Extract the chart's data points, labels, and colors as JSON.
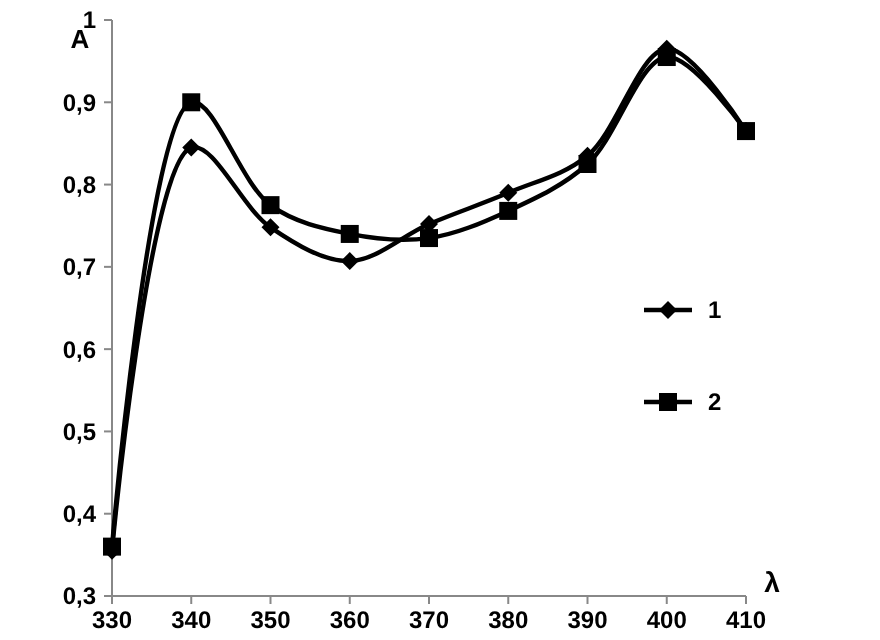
{
  "chart_data": {
    "type": "line",
    "xlabel": "λ",
    "ylabel": "A",
    "x": [
      330,
      340,
      350,
      360,
      370,
      380,
      390,
      400,
      410
    ],
    "series": [
      {
        "name": "1",
        "color": "#000000",
        "marker": "diamond",
        "values": [
          0.355,
          0.845,
          0.748,
          0.707,
          0.752,
          0.79,
          0.835,
          0.965,
          0.865
        ]
      },
      {
        "name": "2",
        "color": "#000000",
        "marker": "square",
        "values": [
          0.36,
          0.9,
          0.775,
          0.74,
          0.735,
          0.768,
          0.825,
          0.955,
          0.865
        ]
      }
    ],
    "xlim": [
      330,
      410
    ],
    "xticks": [
      330,
      340,
      350,
      360,
      370,
      380,
      390,
      400,
      410
    ],
    "ylim": [
      0.3,
      1
    ],
    "yticks": [
      {
        "value": 0.3,
        "label": "0,3"
      },
      {
        "value": 0.4,
        "label": "0,4"
      },
      {
        "value": 0.5,
        "label": "0,5"
      },
      {
        "value": 0.6,
        "label": "0,6"
      },
      {
        "value": 0.7,
        "label": "0,7"
      },
      {
        "value": 0.8,
        "label": "0,8"
      },
      {
        "value": 0.9,
        "label": "0,9"
      },
      {
        "value": 1,
        "label": "1"
      }
    ],
    "legend": "right",
    "grid": false
  }
}
